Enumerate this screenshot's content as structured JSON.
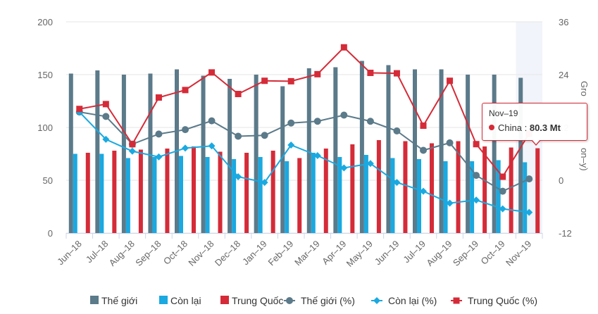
{
  "chart_data": {
    "type": "bar",
    "categories": [
      "Jun–18",
      "Jul–18",
      "Aug–18",
      "Sep–18",
      "Oct–18",
      "Nov–18",
      "Dec–18",
      "Jan–19",
      "Feb–19",
      "Mar–19",
      "Apr–19",
      "May–19",
      "Jun–19",
      "Jul–19",
      "Aug–19",
      "Sep–19",
      "Oct–19",
      "Nov–19"
    ],
    "y_left": {
      "min": 0,
      "max": 200,
      "ticks": [
        0,
        50,
        100,
        150,
        200
      ]
    },
    "y_right": {
      "min": -12,
      "max": 36,
      "ticks": [
        -12,
        0,
        12,
        24,
        36
      ],
      "title_partial": "Gro",
      "title_partial2": "on–y)"
    },
    "bar_series": [
      {
        "name": "Thế giới",
        "color": "#5b7a8a",
        "values": [
          151,
          154,
          150,
          151,
          155,
          149,
          146,
          150,
          139,
          156,
          157,
          163,
          159,
          155,
          155,
          150,
          150,
          147
        ]
      },
      {
        "name": "Còn lại",
        "color": "#1aa9e0",
        "values": [
          75,
          75,
          71,
          72,
          73,
          72,
          70,
          72,
          68,
          76,
          72,
          74,
          71,
          70,
          68,
          68,
          69,
          67
        ]
      },
      {
        "name": "Trung Quốc",
        "color": "#d52b38",
        "values": [
          76,
          78,
          79,
          80,
          82,
          77,
          76,
          78,
          71,
          80,
          84,
          88,
          87,
          85,
          87,
          82,
          81,
          80.3
        ]
      }
    ],
    "line_series": [
      {
        "name": "Thế giới (%)",
        "color": "#5b7a8a",
        "marker": "circle",
        "values": [
          15.5,
          14.5,
          8.2,
          10.5,
          11.5,
          13.5,
          10,
          10.2,
          13,
          13.4,
          14.8,
          13.4,
          11.2,
          6.8,
          8.5,
          1.1,
          -2.5,
          0.3
        ]
      },
      {
        "name": "Còn lại (%)",
        "color": "#1aa9e0",
        "marker": "diamond",
        "values": [
          15.5,
          9.3,
          6.6,
          5.3,
          7.3,
          7.8,
          0.8,
          -0.5,
          8,
          5.6,
          2.8,
          3.8,
          -0.5,
          -2.5,
          -5.2,
          -4.5,
          -6.5,
          -7.3
        ]
      },
      {
        "name": "Trung Quốc (%)",
        "color": "#d52b38",
        "marker": "square",
        "values": [
          16.2,
          17.3,
          8.2,
          18.8,
          20.5,
          24.5,
          19.6,
          22.6,
          22.5,
          24.1,
          30.2,
          24.4,
          24.3,
          12.4,
          22.6,
          8.2,
          0.8,
          10.6
        ]
      }
    ],
    "highlight_category": "Nov–19",
    "grid": true,
    "legend": "bottom"
  },
  "tooltip": {
    "title": "Nov–19",
    "series": "China",
    "separator": ":",
    "value": "80.3 Mt",
    "color": "#d52b38"
  }
}
